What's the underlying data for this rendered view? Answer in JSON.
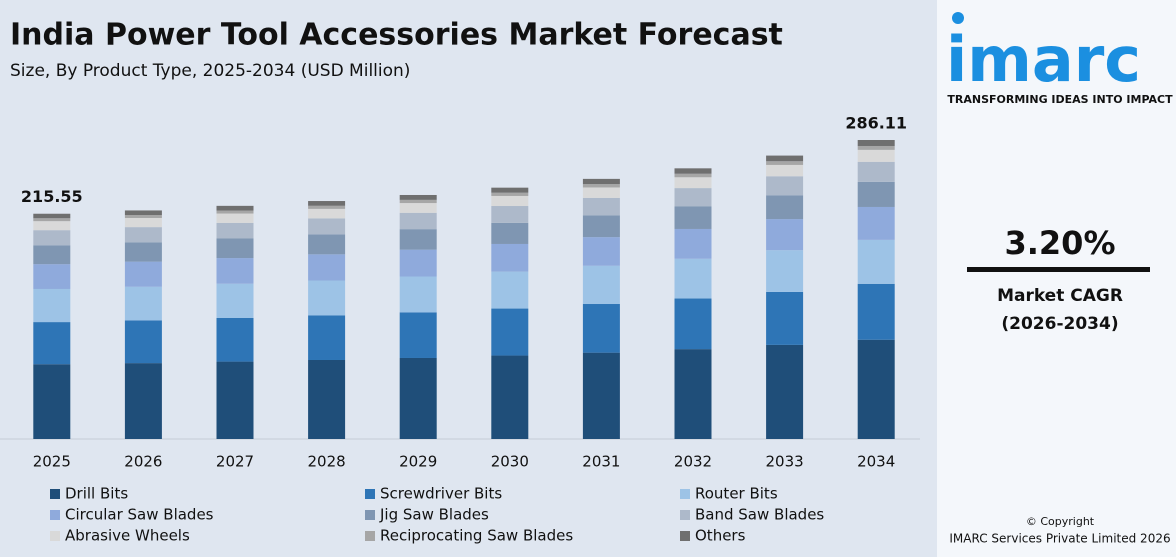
{
  "chart_data": {
    "type": "stacked_bar",
    "title": "India Power Tool Accessories Market Forecast",
    "subtitle": "Size, By Product Type, 2025-2034 (USD Million)",
    "categories": [
      "2025",
      "2026",
      "2027",
      "2028",
      "2029",
      "2030",
      "2031",
      "2032",
      "2033",
      "2034"
    ],
    "series": [
      {
        "name": "Drill Bits",
        "color": "#1f4e79",
        "values": [
          71.56,
          72.61,
          74.07,
          75.6,
          77.52,
          79.85,
          82.63,
          85.99,
          90.04,
          94.99
        ]
      },
      {
        "name": "Screwdriver Bits",
        "color": "#2e75b6",
        "values": [
          40.31,
          40.9,
          41.72,
          42.58,
          43.66,
          44.97,
          46.54,
          48.43,
          50.71,
          53.5
        ]
      },
      {
        "name": "Router Bits",
        "color": "#9dc3e6",
        "values": [
          31.69,
          32.15,
          32.8,
          33.47,
          34.32,
          35.35,
          36.59,
          38.07,
          39.87,
          42.06
        ]
      },
      {
        "name": "Circular Saw Blades",
        "color": "#8faadc",
        "values": [
          23.71,
          24.06,
          24.54,
          25.05,
          25.69,
          26.46,
          27.38,
          28.49,
          29.83,
          31.47
        ]
      },
      {
        "name": "Jig Saw Blades",
        "color": "#7f96b2",
        "values": [
          18.11,
          18.37,
          18.74,
          19.13,
          19.61,
          20.2,
          20.91,
          21.76,
          22.78,
          24.03
        ]
      },
      {
        "name": "Band Saw Blades",
        "color": "#adb9ca",
        "values": [
          14.44,
          14.65,
          14.95,
          15.26,
          15.64,
          16.11,
          16.68,
          17.35,
          18.17,
          19.17
        ]
      },
      {
        "name": "Abrasive Wheels",
        "color": "#d9d9d9",
        "values": [
          8.62,
          8.75,
          8.92,
          9.11,
          9.34,
          9.62,
          9.96,
          10.36,
          10.85,
          11.44
        ]
      },
      {
        "name": "Reciprocating Saw Blades",
        "color": "#a6a6a6",
        "values": [
          2.8,
          2.84,
          2.9,
          2.96,
          3.04,
          3.13,
          3.24,
          3.37,
          3.53,
          3.72
        ]
      },
      {
        "name": "Others",
        "color": "#6f6f6f",
        "values": [
          4.31,
          4.37,
          4.46,
          4.55,
          4.67,
          4.81,
          4.98,
          5.18,
          5.42,
          5.73
        ]
      }
    ],
    "total_labels": [
      {
        "category": "2025",
        "value": 215.55
      },
      {
        "category": "2034",
        "value": 286.11
      }
    ]
  },
  "sidebar": {
    "logo": "imarc",
    "tagline": "TRANSFORMING IDEAS INTO IMPACT",
    "cagr": "3.20%",
    "cagr_label": "Market CAGR",
    "cagr_period": "(2026-2034)",
    "copyright": "© Copyright",
    "owner": "IMARC Services Private Limited 2026"
  }
}
